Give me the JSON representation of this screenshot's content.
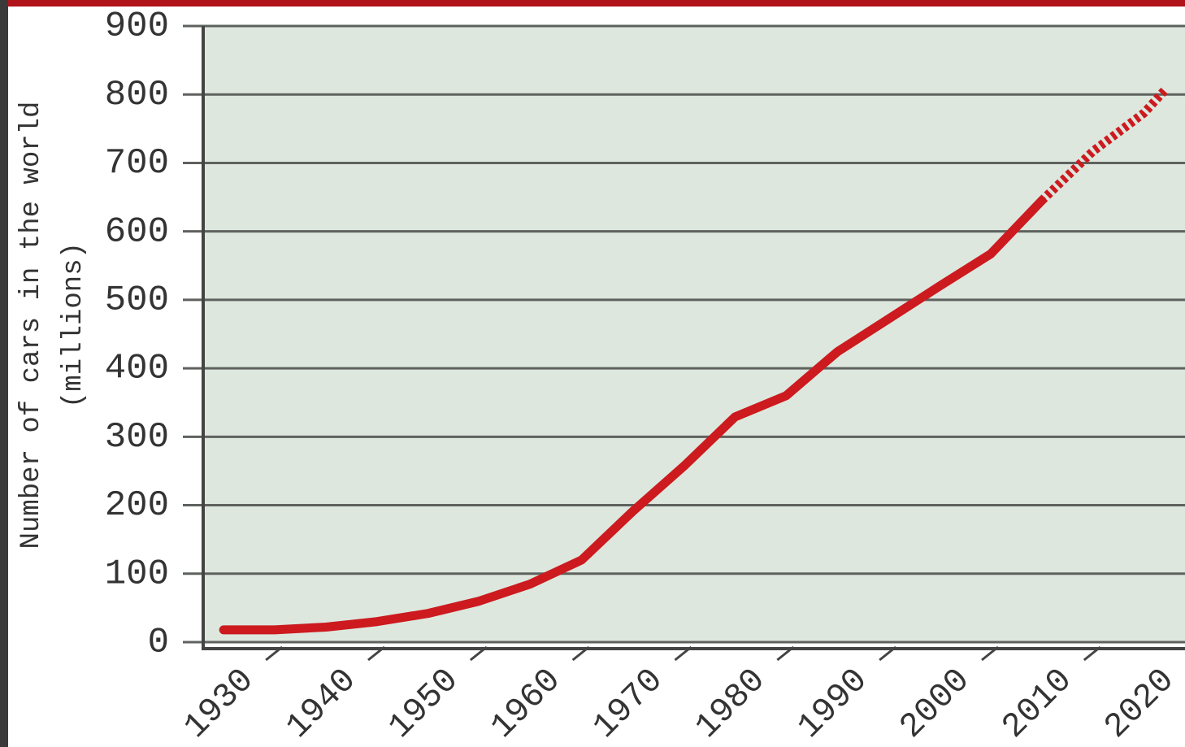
{
  "chart_data": {
    "type": "line",
    "ylabel": [
      "Number of cars in the world",
      "(millions)"
    ],
    "x": [
      1930,
      1935,
      1940,
      1945,
      1950,
      1955,
      1960,
      1965,
      1970,
      1975,
      1980,
      1985,
      1990,
      1995,
      2000,
      2005,
      2010,
      2015,
      2020,
      2022
    ],
    "series": [
      {
        "color": "#cc1a1f",
        "style": "solid",
        "values": [
          18,
          18,
          22,
          30,
          42,
          60,
          85,
          120,
          191,
          257,
          329,
          360,
          424,
          472,
          520,
          567,
          645,
          null,
          null,
          null
        ]
      },
      {
        "color": "#cc1a1f",
        "style": "dashed",
        "values": [
          null,
          null,
          null,
          null,
          null,
          null,
          null,
          null,
          null,
          null,
          null,
          null,
          null,
          null,
          null,
          null,
          645,
          717,
          773,
          806
        ]
      }
    ],
    "xlim": [
      1928,
      2024
    ],
    "xticks": [
      1930,
      1940,
      1950,
      1960,
      1970,
      1980,
      1990,
      2000,
      2010,
      2020
    ],
    "ylim": [
      0,
      900
    ],
    "yticks": [
      0,
      100,
      200,
      300,
      400,
      500,
      600,
      700,
      800,
      900
    ],
    "grid": true
  }
}
